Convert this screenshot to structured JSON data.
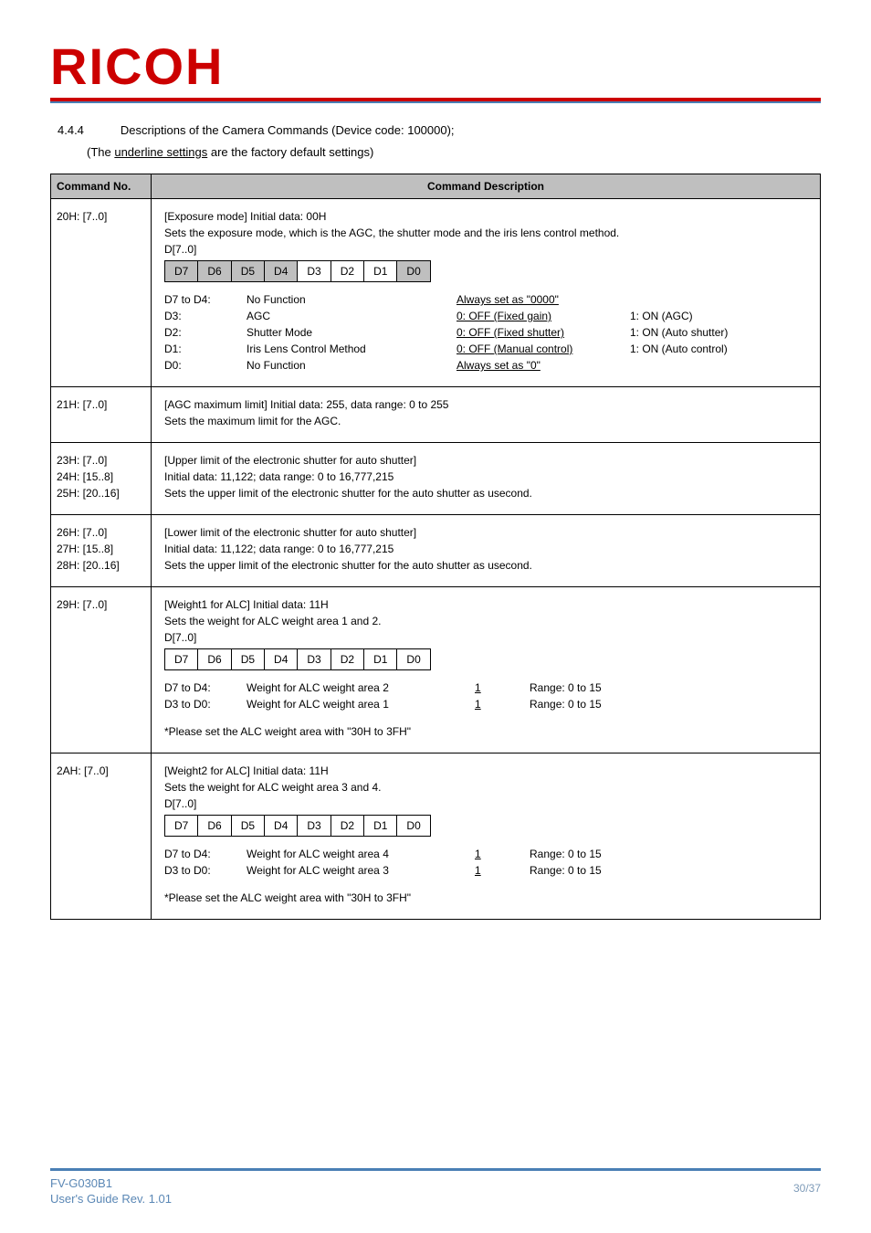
{
  "brand": {
    "logo_text": "RICOH",
    "logo_color": "#cc0000"
  },
  "section": {
    "number": "4.4.4",
    "title": "Descriptions of the Camera Commands (Device code: 100000);",
    "subnote_prefix": "(The ",
    "subnote_underlined": "underline settings",
    "subnote_suffix": " are the factory default settings)"
  },
  "table": {
    "header_col1": "Command No.",
    "header_col2": "Command Description",
    "header_bg": "#bfbfbf",
    "rows": [
      {
        "cmd": "20H: [7..0]",
        "title_line": "[Exposure mode] Initial data: 00H",
        "desc_line": "Sets the exposure mode, which is the AGC, the shutter mode and the iris lens control method.",
        "dlabel": "D[7..0]",
        "bits": [
          "D7",
          "D6",
          "D5",
          "D4",
          "D3",
          "D2",
          "D1",
          "D0"
        ],
        "bit_shaded": [
          true,
          true,
          true,
          true,
          false,
          false,
          false,
          true
        ],
        "map": [
          {
            "a": "D7 to D4:",
            "b": "No Function",
            "c": "Always set as \"0000\"",
            "d": "",
            "c_ul": true
          },
          {
            "a": "D3:",
            "b": "AGC",
            "c": "0: OFF (Fixed gain)",
            "d": "1: ON (AGC)",
            "c_ul": true
          },
          {
            "a": "D2:",
            "b": "Shutter Mode",
            "c": "0: OFF (Fixed shutter)",
            "d": "1: ON (Auto shutter)",
            "c_ul": true
          },
          {
            "a": "D1:",
            "b": "Iris Lens Control Method",
            "c": "0: OFF (Manual control)",
            "d": "1: ON (Auto control)",
            "c_ul": true
          },
          {
            "a": "D0:",
            "b": "No Function",
            "c": "Always set as \"0\"",
            "d": "",
            "c_ul": true
          }
        ]
      },
      {
        "cmd": "21H: [7..0]",
        "lines": [
          "[AGC maximum limit] Initial data: 255, data range: 0 to 255",
          "Sets the maximum limit for the AGC."
        ]
      },
      {
        "cmds": [
          "23H: [7..0]",
          "24H: [15..8]",
          "25H: [20..16]"
        ],
        "lines": [
          "[Upper limit of the electronic shutter for auto shutter]",
          "Initial data: 11,122; data range: 0 to 16,777,215",
          "Sets the upper limit of the electronic shutter for the auto shutter as usecond."
        ]
      },
      {
        "cmds": [
          "26H: [7..0]",
          "27H: [15..8]",
          "28H: [20..16]"
        ],
        "lines": [
          "[Lower limit of the electronic shutter for auto shutter]",
          "Initial data: 11,122; data range: 0 to 16,777,215",
          "Sets the upper limit of the electronic shutter for the auto shutter as usecond."
        ]
      },
      {
        "cmd": "29H: [7..0]",
        "title_line": "[Weight1 for ALC] Initial data: 11H",
        "desc_line": "Sets the weight for ALC weight area 1 and 2.",
        "dlabel": "D[7..0]",
        "bits": [
          "D7",
          "D6",
          "D5",
          "D4",
          "D3",
          "D2",
          "D1",
          "D0"
        ],
        "bit_shaded": [
          false,
          false,
          false,
          false,
          false,
          false,
          false,
          false
        ],
        "weights": [
          {
            "a": "D7 to D4:",
            "b": "Weight for ALC weight area 2",
            "v": "1",
            "r": "Range: 0 to 15"
          },
          {
            "a": "D3 to D0:",
            "b": "Weight for ALC weight area 1",
            "v": "1",
            "r": "Range: 0 to 15"
          }
        ],
        "footer_note": "*Please set the ALC weight area with \"30H to 3FH\""
      },
      {
        "cmd": "2AH: [7..0]",
        "title_line": "[Weight2 for ALC] Initial data: 11H",
        "desc_line": "Sets the weight for ALC weight area 3 and 4.",
        "dlabel": "D[7..0]",
        "bits": [
          "D7",
          "D6",
          "D5",
          "D4",
          "D3",
          "D2",
          "D1",
          "D0"
        ],
        "bit_shaded": [
          false,
          false,
          false,
          false,
          false,
          false,
          false,
          false
        ],
        "weights": [
          {
            "a": "D7 to D4:",
            "b": "Weight for ALC weight area 4",
            "v": "1",
            "r": "Range: 0 to 15"
          },
          {
            "a": "D3 to D0:",
            "b": "Weight for ALC weight area 3",
            "v": "1",
            "r": "Range: 0 to 15"
          }
        ],
        "footer_note": "*Please set the ALC weight area with \"30H to 3FH\""
      }
    ]
  },
  "footer": {
    "left_line1": "FV-G030B1",
    "left_line2": "User's Guide Rev. 1.01",
    "right": "30/37",
    "line_color": "#4a7fb5",
    "text_color": "#5a87b5"
  }
}
